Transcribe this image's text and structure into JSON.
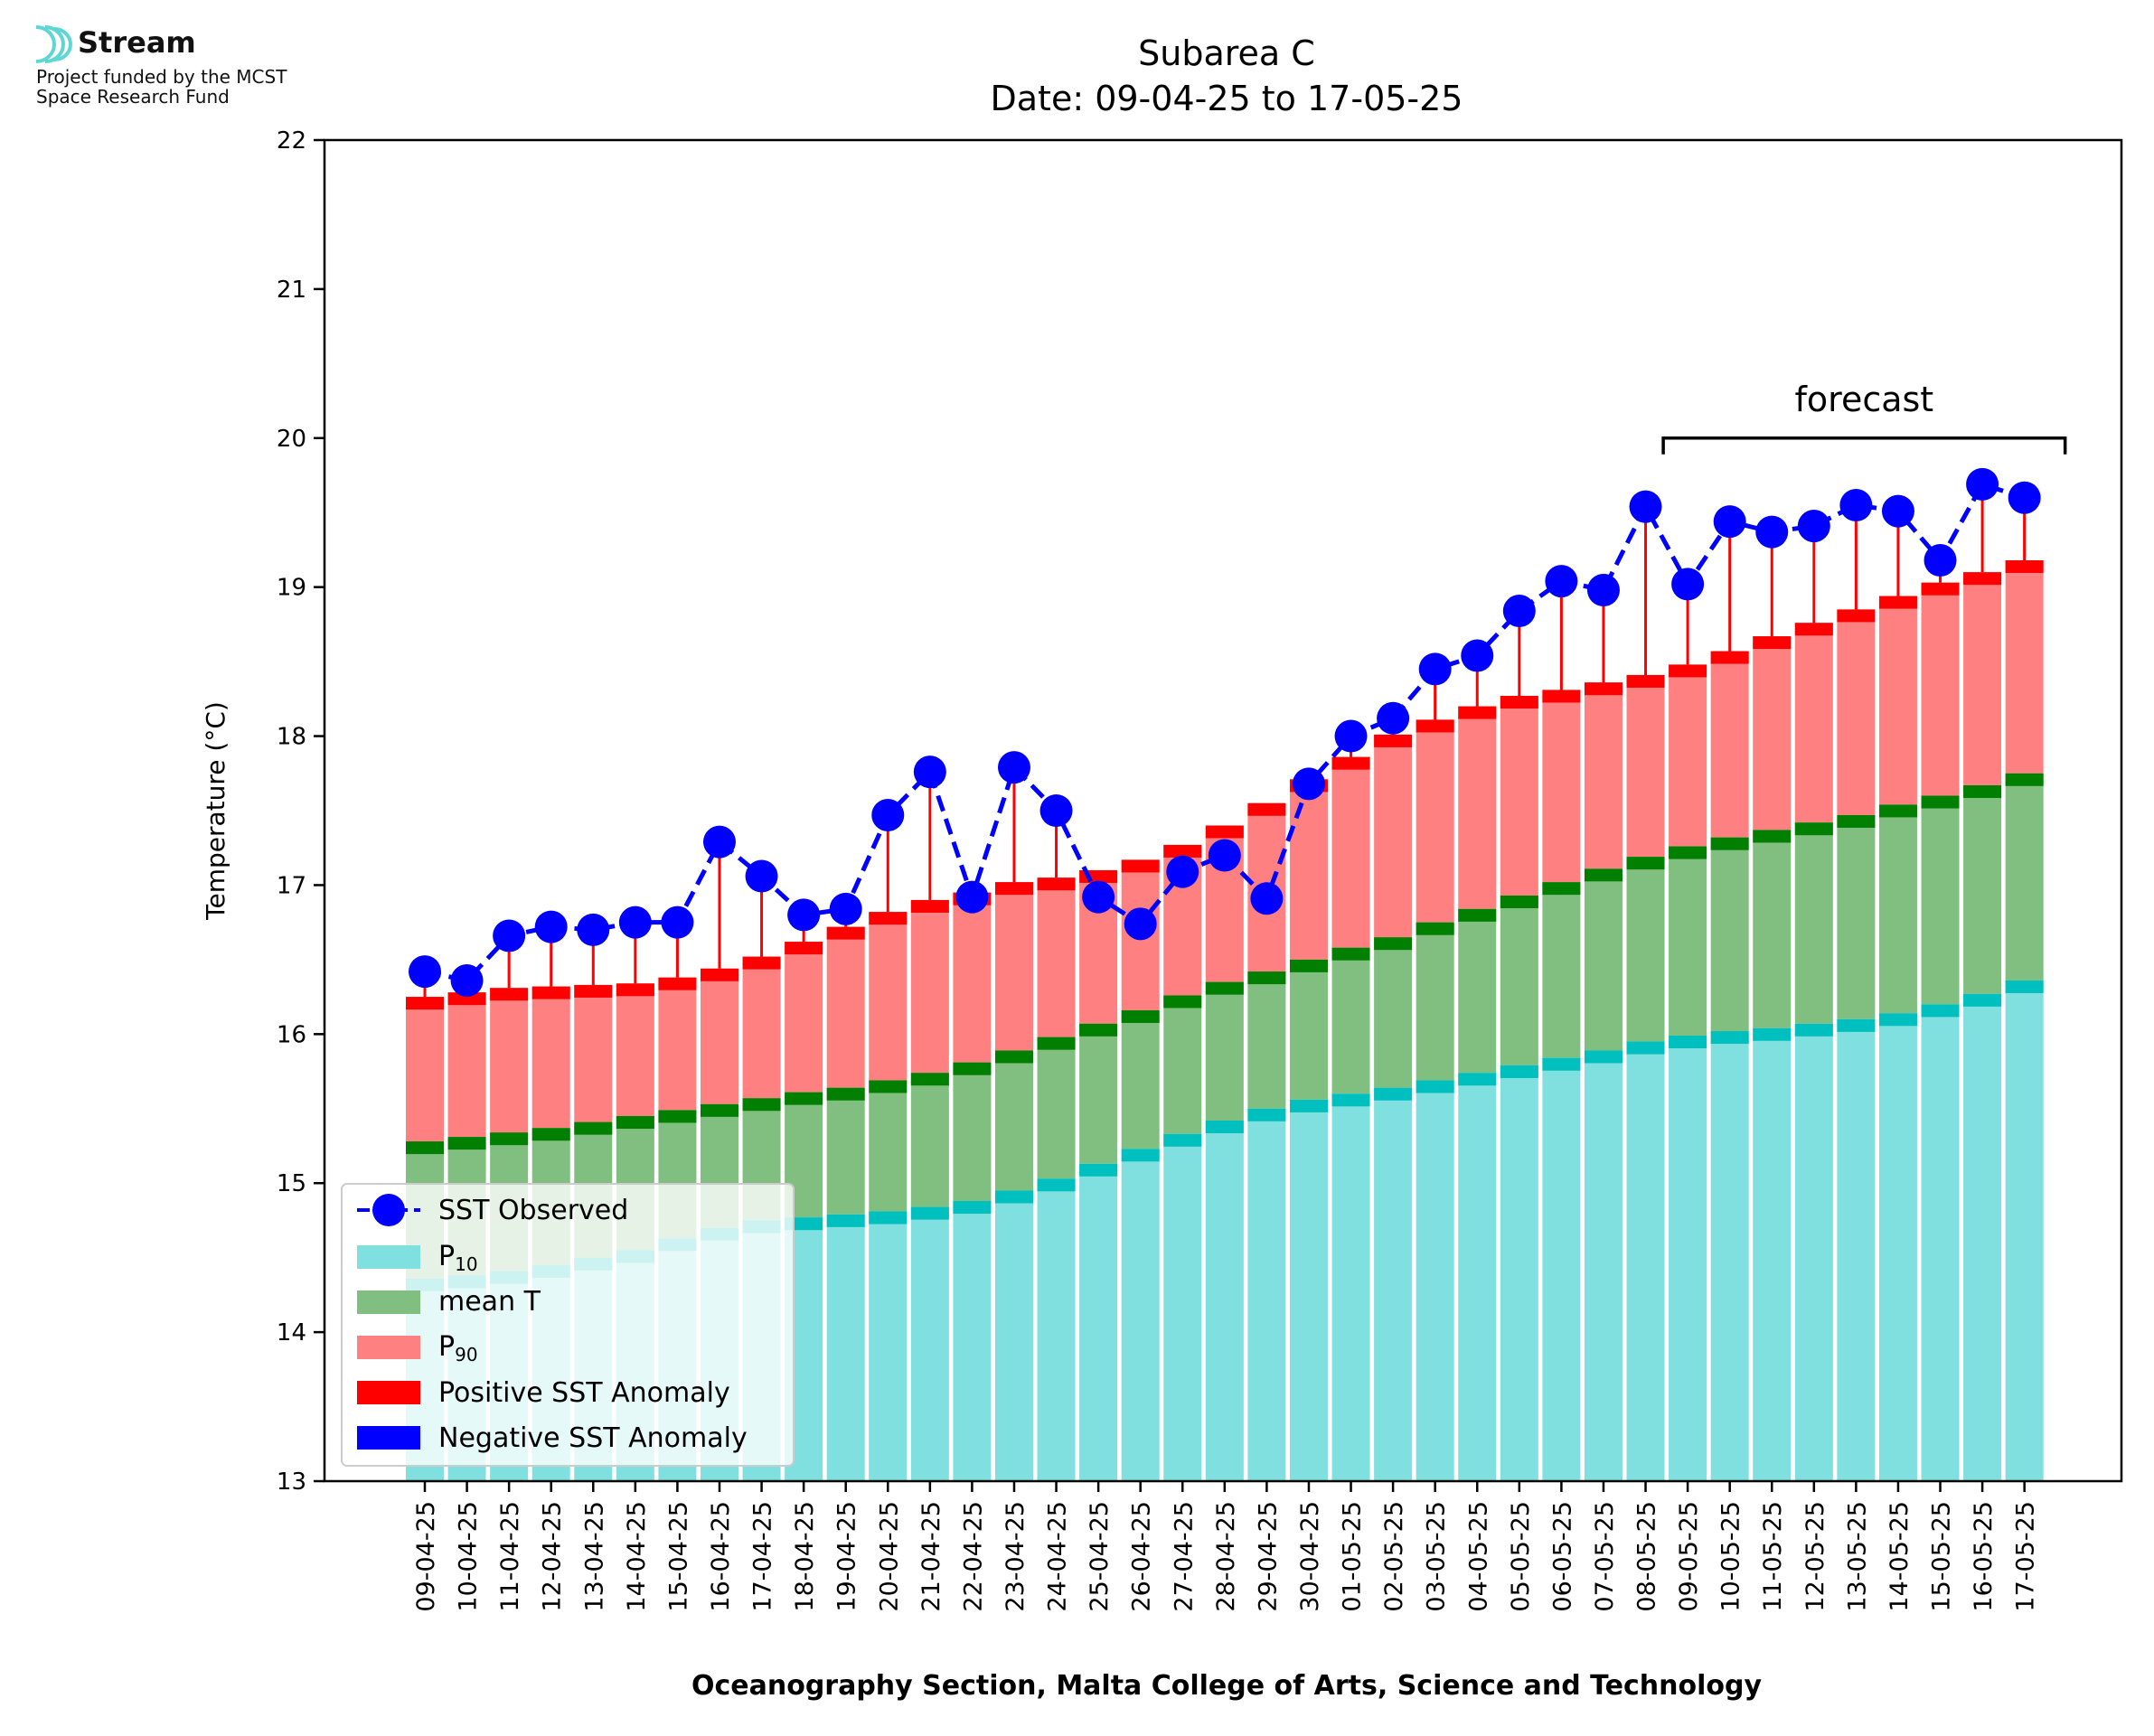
{
  "logo": {
    "name": "Stream",
    "subtitle_line1": "Project funded by the MCST",
    "subtitle_line2": "Space Research Fund"
  },
  "chart_data": {
    "type": "bar",
    "title": "Subarea C",
    "subtitle": "Date: 09-04-25 to 17-05-25",
    "xlabel": "Oceanography Section, Malta College of Arts, Science and Technology",
    "ylabel": "Temperature (°C)",
    "ylim": [
      13,
      22
    ],
    "yticks": [
      13,
      14,
      15,
      16,
      17,
      18,
      19,
      20,
      21,
      22
    ],
    "grid": false,
    "legend_position": "lower-left",
    "categories": [
      "09-04-25",
      "10-04-25",
      "11-04-25",
      "12-04-25",
      "13-04-25",
      "14-04-25",
      "15-04-25",
      "16-04-25",
      "17-04-25",
      "18-04-25",
      "19-04-25",
      "20-04-25",
      "21-04-25",
      "22-04-25",
      "23-04-25",
      "24-04-25",
      "25-04-25",
      "26-04-25",
      "27-04-25",
      "28-04-25",
      "29-04-25",
      "30-04-25",
      "01-05-25",
      "02-05-25",
      "03-05-25",
      "04-05-25",
      "05-05-25",
      "06-05-25",
      "07-05-25",
      "08-05-25",
      "09-05-25",
      "10-05-25",
      "11-05-25",
      "12-05-25",
      "13-05-25",
      "14-05-25",
      "15-05-25",
      "16-05-25",
      "17-05-25"
    ],
    "series": [
      {
        "name": "P10",
        "color": "#80dfdf",
        "edge_color": "#00bfbf",
        "values": [
          14.36,
          14.38,
          14.41,
          14.45,
          14.5,
          14.55,
          14.63,
          14.7,
          14.75,
          14.77,
          14.79,
          14.81,
          14.84,
          14.88,
          14.95,
          15.03,
          15.13,
          15.23,
          15.33,
          15.42,
          15.5,
          15.56,
          15.6,
          15.64,
          15.69,
          15.74,
          15.79,
          15.84,
          15.89,
          15.95,
          15.99,
          16.02,
          16.04,
          16.07,
          16.1,
          16.14,
          16.2,
          16.27,
          16.36
        ]
      },
      {
        "name": "mean T",
        "color": "#80bf80",
        "edge_color": "#007f00",
        "values": [
          15.28,
          15.31,
          15.34,
          15.37,
          15.41,
          15.45,
          15.49,
          15.53,
          15.57,
          15.61,
          15.64,
          15.69,
          15.74,
          15.81,
          15.89,
          15.98,
          16.07,
          16.16,
          16.26,
          16.35,
          16.42,
          16.5,
          16.58,
          16.65,
          16.75,
          16.84,
          16.93,
          17.02,
          17.11,
          17.19,
          17.26,
          17.32,
          17.37,
          17.42,
          17.47,
          17.54,
          17.6,
          17.67,
          17.75
        ]
      },
      {
        "name": "P90",
        "color": "#ff8080",
        "edge_color": "#ff0000",
        "values": [
          16.25,
          16.28,
          16.31,
          16.32,
          16.33,
          16.34,
          16.38,
          16.44,
          16.52,
          16.62,
          16.72,
          16.82,
          16.9,
          16.95,
          17.02,
          17.05,
          17.1,
          17.17,
          17.27,
          17.4,
          17.55,
          17.71,
          17.86,
          18.01,
          18.11,
          18.2,
          18.27,
          18.31,
          18.36,
          18.41,
          18.48,
          18.57,
          18.67,
          18.76,
          18.85,
          18.94,
          19.03,
          19.1,
          19.18
        ]
      },
      {
        "name": "SST Observed",
        "color": "#0000ff",
        "values": [
          16.42,
          16.36,
          16.66,
          16.72,
          16.7,
          16.75,
          16.75,
          17.29,
          17.06,
          16.8,
          16.84,
          17.47,
          17.76,
          16.92,
          17.79,
          17.5,
          16.92,
          16.74,
          17.09,
          17.2,
          16.91,
          17.68,
          18.0,
          18.12,
          18.45,
          18.54,
          18.84,
          19.04,
          18.98,
          19.54,
          19.02,
          19.44,
          19.37,
          19.41,
          19.55,
          19.51,
          19.18,
          19.69,
          19.6
        ]
      }
    ],
    "legend": {
      "sst": "SST Observed",
      "p10_main": "P",
      "p10_sub": "10",
      "mean": "mean T",
      "p90_main": "P",
      "p90_sub": "90",
      "pos_anom": "Positive SST Anomaly",
      "neg_anom": "Negative SST Anomaly"
    },
    "anomaly_colors": {
      "positive": "#ff0000",
      "negative": "#0000ff"
    },
    "forecast": {
      "label": "forecast",
      "from": "09-05-25",
      "to": "17-05-25"
    }
  }
}
